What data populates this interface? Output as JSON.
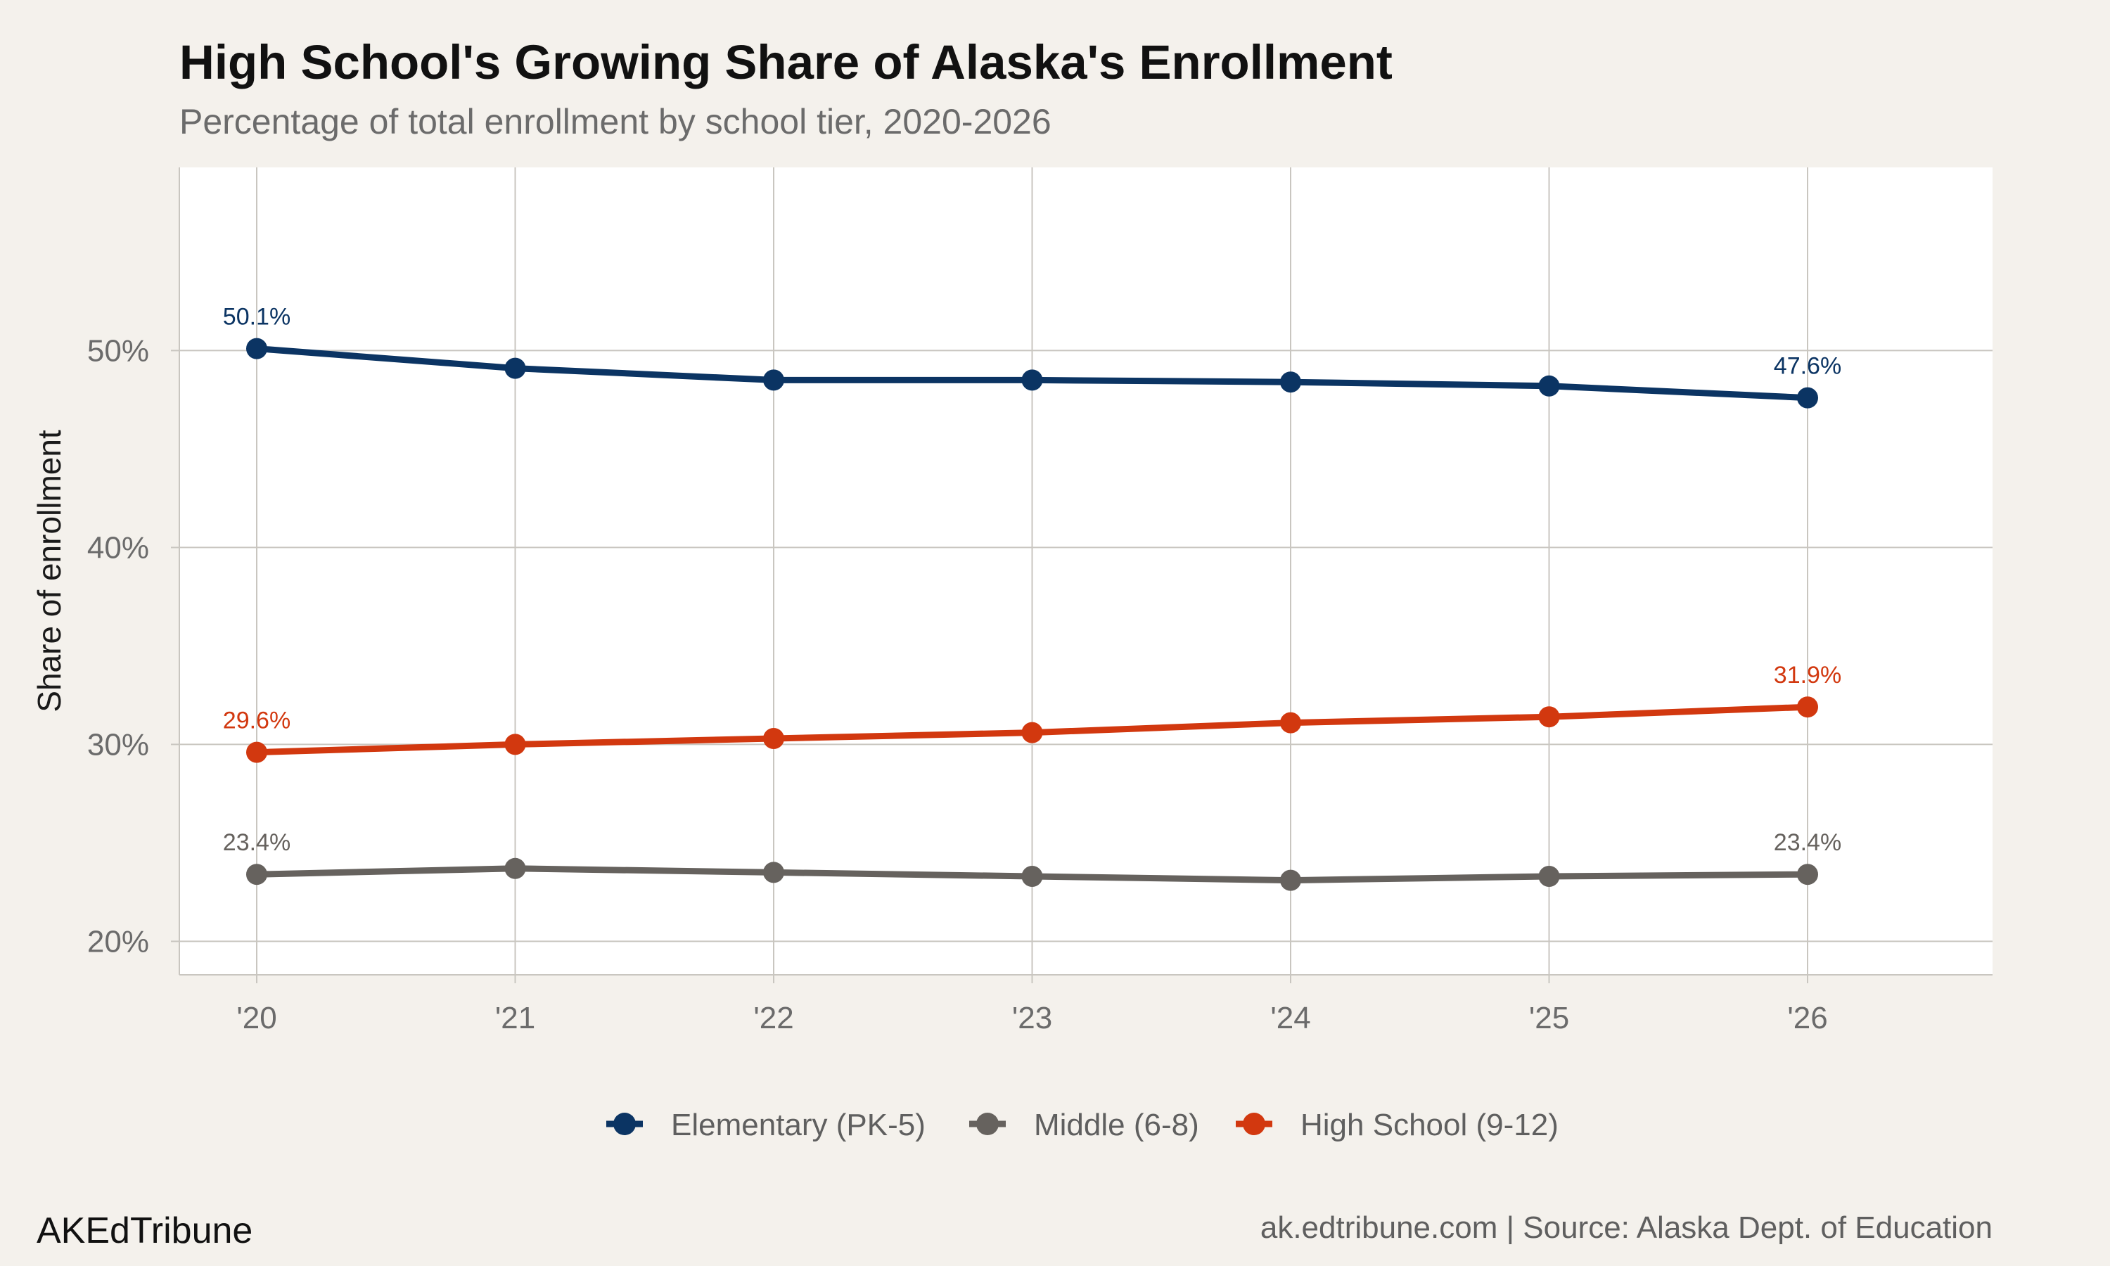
{
  "title": "High School's Growing Share of Alaska's Enrollment",
  "subtitle": "Percentage of total enrollment by school tier, 2020-2026",
  "brand": "AKEdTribune",
  "source": "ak.edtribune.com | Source: Alaska Dept. of Education",
  "colors": {
    "background": "#f4f1ec",
    "panel": "#ffffff",
    "grid": "#c9c6c0",
    "elementary": "#0b3463",
    "middle": "#66625e",
    "high_school": "#d2380f"
  },
  "chart_data": {
    "type": "line",
    "title": "High School's Growing Share of Alaska's Enrollment",
    "subtitle": "Percentage of total enrollment by school tier, 2020-2026",
    "xlabel": "",
    "ylabel": "Share of enrollment",
    "x": [
      "'20",
      "'21",
      "'22",
      "'23",
      "'24",
      "'25",
      "'26"
    ],
    "y_ticks": [
      20,
      30,
      40,
      50
    ],
    "y_tick_labels": [
      "20%",
      "30%",
      "40%",
      "50%"
    ],
    "ylim": [
      18.3,
      59.3
    ],
    "grid": true,
    "legend_position": "bottom",
    "series": [
      {
        "name": "Elementary (PK-5)",
        "color": "#0b3463",
        "values": [
          50.1,
          49.1,
          48.5,
          48.5,
          48.4,
          48.2,
          47.6
        ],
        "labels": [
          {
            "index": 0,
            "text": "50.1%"
          },
          {
            "index": 6,
            "text": "47.6%"
          }
        ]
      },
      {
        "name": "Middle (6-8)",
        "color": "#66625e",
        "values": [
          23.4,
          23.7,
          23.5,
          23.3,
          23.1,
          23.3,
          23.4
        ],
        "labels": [
          {
            "index": 0,
            "text": "23.4%"
          },
          {
            "index": 6,
            "text": "23.4%"
          }
        ]
      },
      {
        "name": "High School (9-12)",
        "color": "#d2380f",
        "values": [
          29.6,
          30.0,
          30.3,
          30.6,
          31.1,
          31.4,
          31.9
        ],
        "labels": [
          {
            "index": 0,
            "text": "29.6%"
          },
          {
            "index": 6,
            "text": "31.9%"
          }
        ]
      }
    ]
  }
}
